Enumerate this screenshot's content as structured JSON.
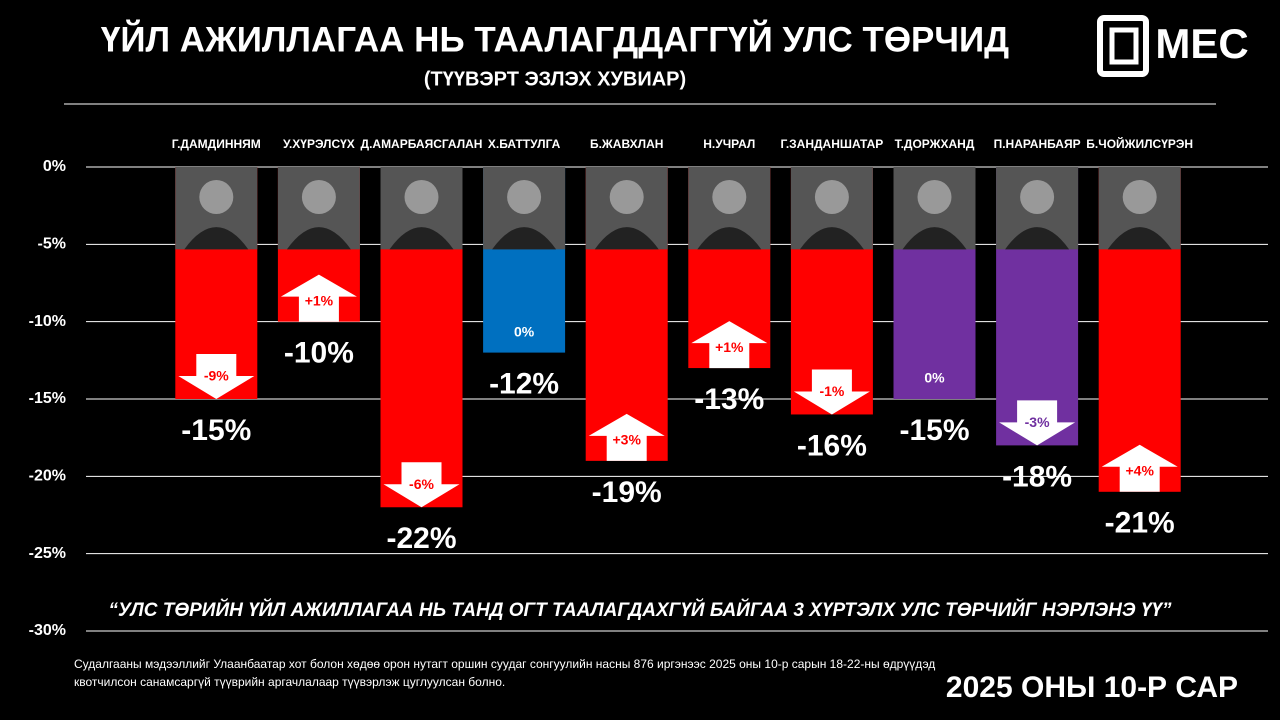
{
  "chart_data": {
    "type": "bar",
    "title": "ҮЙЛ АЖИЛЛАГАА НЬ ТААЛАГДДАГГҮЙ УЛС ТӨРЧИД",
    "subtitle": "(ТҮҮВЭРТ ЭЗЛЭХ ХУВИАР)",
    "logo": "MEC",
    "categories": [
      "Г.ДАМДИННЯМ",
      "У.ХҮРЭЛСҮХ",
      "Д.АМАРБАЯСГАЛАН",
      "Х.БАТТУЛГА",
      "Б.ЖАВХЛАН",
      "Н.УЧРАЛ",
      "Г.ЗАНДАНШАТАР",
      "Т.ДОРЖХАНД",
      "П.НАРАНБАЯР",
      "Б.ЧОЙЖИЛСҮРЭН"
    ],
    "values": [
      -15,
      -10,
      -22,
      -12,
      -19,
      -13,
      -16,
      -15,
      -18,
      -21
    ],
    "value_labels": [
      "-15%",
      "-10%",
      "-22%",
      "-12%",
      "-19%",
      "-13%",
      "-16%",
      "-15%",
      "-18%",
      "-21%"
    ],
    "colors": [
      "#ff0000",
      "#ff0000",
      "#ff0000",
      "#0070c0",
      "#ff0000",
      "#ff0000",
      "#ff0000",
      "#7030a0",
      "#7030a0",
      "#ff0000"
    ],
    "changes": [
      -9,
      1,
      -6,
      0,
      3,
      1,
      -1,
      0,
      -3,
      4
    ],
    "change_labels": [
      "-9%",
      "+1%",
      "-6%",
      "0%",
      "+3%",
      "+1%",
      "-1%",
      "0%",
      "-3%",
      "+4%"
    ],
    "ylim": [
      0,
      -30
    ],
    "yticks": [
      {
        "value": 0,
        "label": "0%"
      },
      {
        "value": -5,
        "label": "-5%"
      },
      {
        "value": -10,
        "label": "-10%"
      },
      {
        "value": -15,
        "label": "-15%"
      },
      {
        "value": -20,
        "label": "-20%"
      },
      {
        "value": -25,
        "label": "-25%"
      },
      {
        "value": -30,
        "label": "-30%"
      }
    ],
    "grid": true,
    "question": "“УЛС ТӨРИЙН ҮЙЛ АЖИЛЛАГАА НЬ ТАНД ОГТ ТААЛАГДАХГҮЙ БАЙГАА 3 ХҮРТЭЛХ УЛС ТӨРЧИЙГ НЭРЛЭНЭ ҮҮ”",
    "note": "Судалгааны мэдээллийг Улаанбаатар хот болон хөдөө орон нутагт оршин суудаг сонгуулийн насны 876 иргэнээс 2025 оны 10-р сарын 18-22-ны өдрүүдэд квотчилсон санамсаргүй түүврийн аргачлалаар түүвэрлэж цуглуулсан болно.",
    "date": "2025 ОНЫ 10-Р САР"
  }
}
